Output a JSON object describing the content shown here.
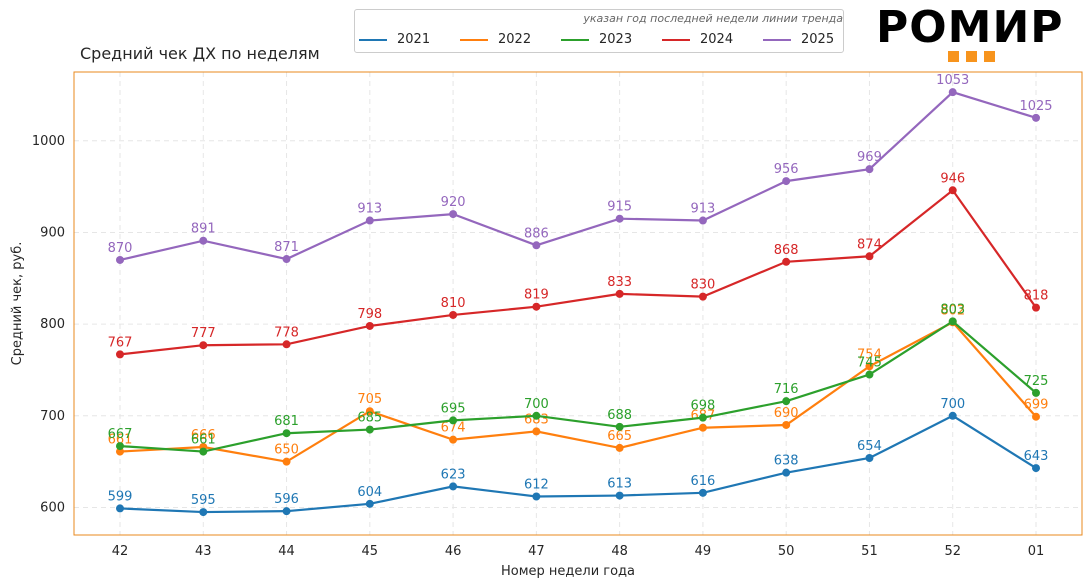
{
  "chart_data": {
    "type": "line",
    "title": "Средний чек ДХ по неделям",
    "xlabel": "Номер недели года",
    "ylabel": "Средний чек, руб.",
    "categories": [
      "42",
      "43",
      "44",
      "45",
      "46",
      "47",
      "48",
      "49",
      "50",
      "51",
      "52",
      "01"
    ],
    "ylim": [
      570,
      1075
    ],
    "yticks": [
      600,
      700,
      800,
      900,
      1000
    ],
    "grid": true,
    "legend_title": "указан год последней недели линии тренда",
    "legend_position": "top-center",
    "series": [
      {
        "name": "2021",
        "color": "#1f77b4",
        "values": [
          599,
          595,
          596,
          604,
          623,
          612,
          613,
          616,
          638,
          654,
          700,
          643
        ]
      },
      {
        "name": "2022",
        "color": "#ff7f0e",
        "values": [
          661,
          666,
          650,
          705,
          674,
          683,
          665,
          687,
          690,
          754,
          802,
          699
        ]
      },
      {
        "name": "2023",
        "color": "#2ca02c",
        "values": [
          667,
          661,
          681,
          685,
          695,
          700,
          688,
          698,
          716,
          745,
          803,
          725
        ]
      },
      {
        "name": "2024",
        "color": "#d62728",
        "values": [
          767,
          777,
          778,
          798,
          810,
          819,
          833,
          830,
          868,
          874,
          946,
          818
        ]
      },
      {
        "name": "2025",
        "color": "#9467bd",
        "values": [
          870,
          891,
          871,
          913,
          920,
          886,
          915,
          913,
          956,
          969,
          1053,
          1025
        ]
      }
    ]
  },
  "logo": {
    "text": "РОМИР",
    "accent_color": "#f7941d"
  },
  "frame_color": "#e8891e"
}
